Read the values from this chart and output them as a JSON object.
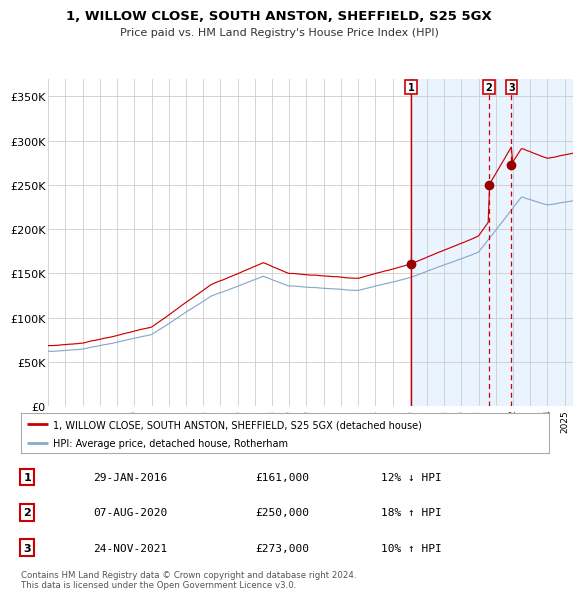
{
  "title": "1, WILLOW CLOSE, SOUTH ANSTON, SHEFFIELD, S25 5GX",
  "subtitle": "Price paid vs. HM Land Registry's House Price Index (HPI)",
  "background_color": "#ffffff",
  "plot_bg_color": "#ffffff",
  "plot_bg_shaded": "#ddeeff",
  "red_line_color": "#cc0000",
  "blue_line_color": "#88aacc",
  "sale_dot_color": "#990000",
  "ylim_min": 0,
  "ylim_max": 370000,
  "yticks": [
    0,
    50000,
    100000,
    150000,
    200000,
    250000,
    300000,
    350000
  ],
  "ytick_labels": [
    "£0",
    "£50K",
    "£100K",
    "£150K",
    "£200K",
    "£250K",
    "£300K",
    "£350K"
  ],
  "xticks": [
    1995,
    1996,
    1997,
    1998,
    1999,
    2000,
    2001,
    2002,
    2003,
    2004,
    2005,
    2006,
    2007,
    2008,
    2009,
    2010,
    2011,
    2012,
    2013,
    2014,
    2015,
    2016,
    2017,
    2018,
    2019,
    2020,
    2021,
    2022,
    2023,
    2024,
    2025
  ],
  "xlim_start": 1995.0,
  "xlim_end": 2025.5,
  "sales": [
    {
      "num": 1,
      "year": 2016.08,
      "price": 161000,
      "label": "1",
      "date_str": "29-JAN-2016",
      "price_str": "£161,000",
      "hpi_str": "12% ↓ HPI"
    },
    {
      "num": 2,
      "year": 2020.6,
      "price": 250000,
      "label": "2",
      "date_str": "07-AUG-2020",
      "price_str": "£250,000",
      "hpi_str": "18% ↑ HPI"
    },
    {
      "num": 3,
      "year": 2021.9,
      "price": 273000,
      "label": "3",
      "date_str": "24-NOV-2021",
      "price_str": "£273,000",
      "hpi_str": "10% ↑ HPI"
    }
  ],
  "legend_entries": [
    {
      "label": "1, WILLOW CLOSE, SOUTH ANSTON, SHEFFIELD, S25 5GX (detached house)",
      "color": "#cc0000"
    },
    {
      "label": "HPI: Average price, detached house, Rotherham",
      "color": "#88aacc"
    }
  ],
  "footer_text": "Contains HM Land Registry data © Crown copyright and database right 2024.\nThis data is licensed under the Open Government Licence v3.0."
}
